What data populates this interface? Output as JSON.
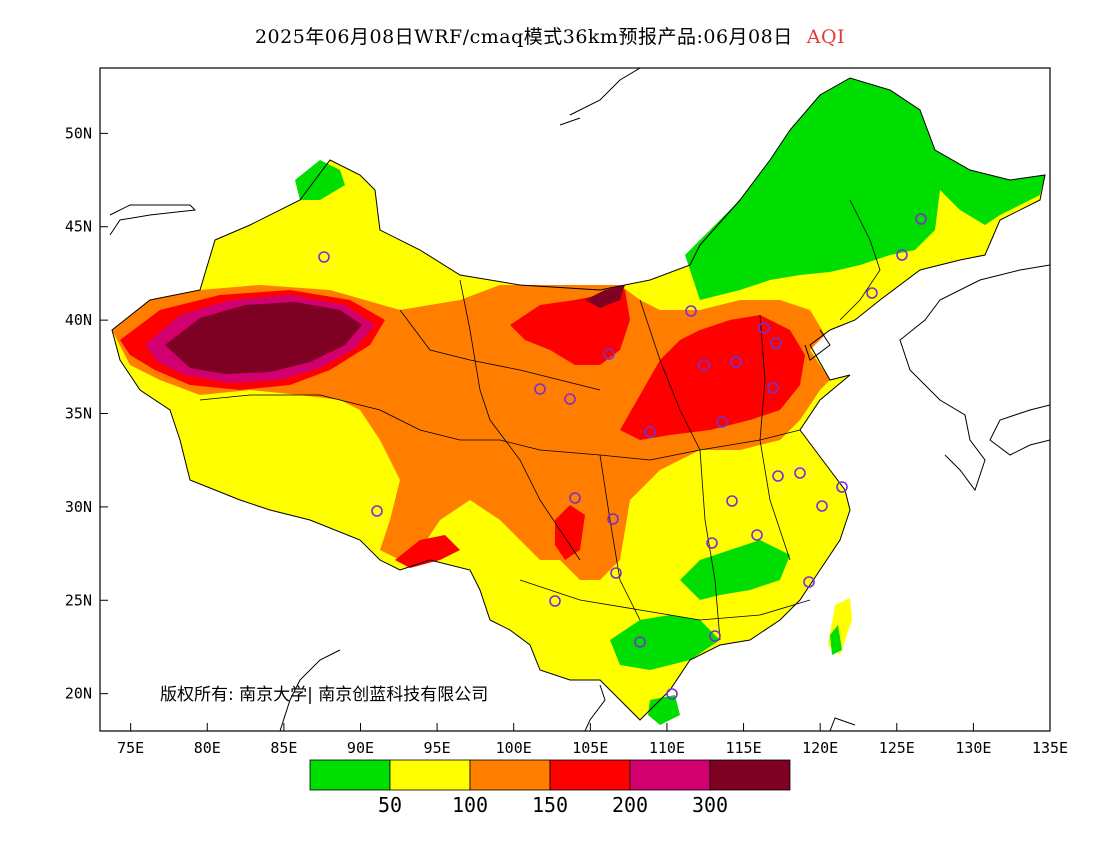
{
  "title": {
    "main": "2025年06月08日WRF/cmaq模式36km预报产品:06月08日",
    "variable": "AQI"
  },
  "axes": {
    "lat_ticks": [
      "20N",
      "25N",
      "30N",
      "35N",
      "40N",
      "45N",
      "50N"
    ],
    "lon_ticks": [
      "75E",
      "80E",
      "85E",
      "90E",
      "95E",
      "100E",
      "105E",
      "110E",
      "115E",
      "120E",
      "125E",
      "130E",
      "135E"
    ],
    "lon_range": [
      73,
      135
    ],
    "lat_range": [
      18,
      53.5
    ]
  },
  "copyright": "版权所有: 南京大学| 南京创蓝科技有限公司",
  "legend": {
    "colors": [
      "#00dd00",
      "#ffff00",
      "#ff7e00",
      "#ff0000",
      "#d1006e",
      "#7e0023"
    ],
    "labels": [
      "50",
      "100",
      "150",
      "200",
      "300"
    ]
  },
  "stations_color": "#7a2fd0"
}
